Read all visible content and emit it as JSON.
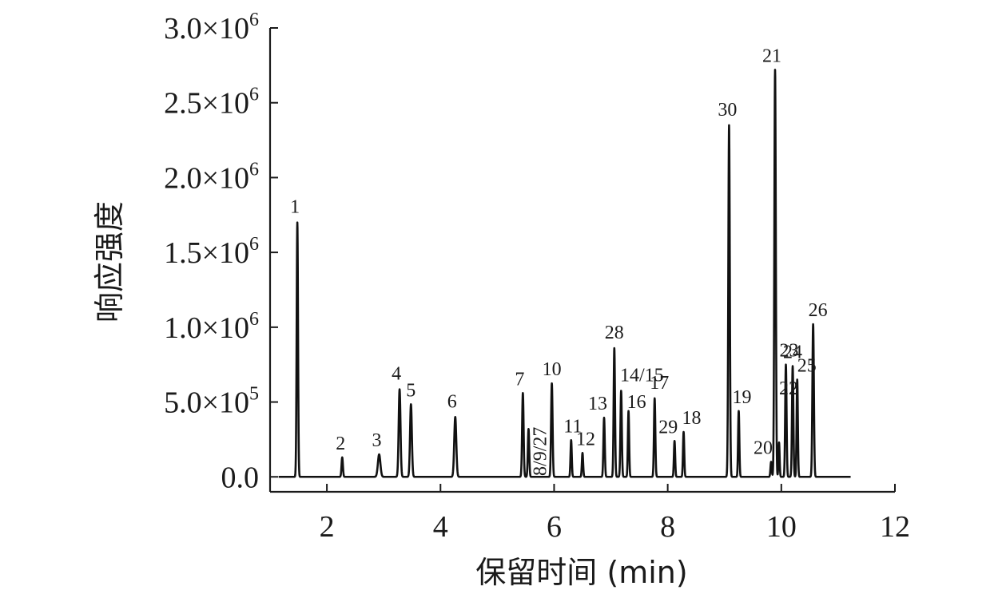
{
  "chart_data": {
    "type": "line",
    "title": "",
    "xlabel": "保留时间 (min)",
    "ylabel": "响应强度",
    "xlim": [
      1.0,
      12.0
    ],
    "ylim": [
      -100000,
      3000000
    ],
    "x_ticks": [
      {
        "value": 2,
        "label": "2"
      },
      {
        "value": 4,
        "label": "4"
      },
      {
        "value": 6,
        "label": "6"
      },
      {
        "value": 8,
        "label": "8"
      },
      {
        "value": 10,
        "label": "10"
      },
      {
        "value": 12,
        "label": "12"
      }
    ],
    "y_ticks": [
      {
        "value": 0,
        "mantissa": "0.0",
        "exp": ""
      },
      {
        "value": 500000,
        "mantissa": "5.0×10",
        "exp": "5"
      },
      {
        "value": 1000000,
        "mantissa": "1.0×10",
        "exp": "6"
      },
      {
        "value": 1500000,
        "mantissa": "1.5×10",
        "exp": "6"
      },
      {
        "value": 2000000,
        "mantissa": "2.0×10",
        "exp": "6"
      },
      {
        "value": 2500000,
        "mantissa": "2.5×10",
        "exp": "6"
      },
      {
        "value": 3000000,
        "mantissa": "3.0×10",
        "exp": "6"
      }
    ],
    "grid": false,
    "legend": "none",
    "peaks": [
      {
        "label": "1",
        "rt": 1.48,
        "height": 1700000,
        "width": 0.012
      },
      {
        "label": "2",
        "rt": 2.27,
        "height": 130000,
        "width": 0.012
      },
      {
        "label": "3",
        "rt": 2.92,
        "height": 150000,
        "width": 0.022
      },
      {
        "label": "4",
        "rt": 3.28,
        "height": 585000,
        "width": 0.016
      },
      {
        "label": "5",
        "rt": 3.48,
        "height": 485000,
        "width": 0.016
      },
      {
        "label": "6",
        "rt": 4.26,
        "height": 400000,
        "width": 0.018
      },
      {
        "label": "7",
        "rt": 5.45,
        "height": 560000,
        "width": 0.013
      },
      {
        "label": "8/9/27",
        "rt": 5.55,
        "height": 320000,
        "width": 0.012
      },
      {
        "label": "10",
        "rt": 5.96,
        "height": 625000,
        "width": 0.013
      },
      {
        "label": "11",
        "rt": 6.3,
        "height": 245000,
        "width": 0.011
      },
      {
        "label": "12",
        "rt": 6.5,
        "height": 160000,
        "width": 0.011
      },
      {
        "label": "13",
        "rt": 6.88,
        "height": 395000,
        "width": 0.012
      },
      {
        "label": "28",
        "rt": 7.06,
        "height": 860000,
        "width": 0.012
      },
      {
        "label": "14/15",
        "rt": 7.18,
        "height": 575000,
        "width": 0.012
      },
      {
        "label": "16",
        "rt": 7.31,
        "height": 440000,
        "width": 0.011
      },
      {
        "label": "17",
        "rt": 7.77,
        "height": 525000,
        "width": 0.012
      },
      {
        "label": "29",
        "rt": 8.12,
        "height": 240000,
        "width": 0.011
      },
      {
        "label": "18",
        "rt": 8.28,
        "height": 300000,
        "width": 0.011
      },
      {
        "label": "30",
        "rt": 9.08,
        "height": 2350000,
        "width": 0.013
      },
      {
        "label": "19",
        "rt": 9.25,
        "height": 440000,
        "width": 0.011
      },
      {
        "label": "20",
        "rt": 9.82,
        "height": 100000,
        "width": 0.011
      },
      {
        "label": "21",
        "rt": 9.89,
        "height": 2720000,
        "width": 0.013
      },
      {
        "label": "22",
        "rt": 9.96,
        "height": 230000,
        "width": 0.01
      },
      {
        "label": "23",
        "rt": 10.08,
        "height": 750000,
        "width": 0.012
      },
      {
        "label": "24",
        "rt": 10.2,
        "height": 740000,
        "width": 0.012
      },
      {
        "label": "25",
        "rt": 10.28,
        "height": 650000,
        "width": 0.011
      },
      {
        "label": "26",
        "rt": 10.56,
        "height": 1020000,
        "width": 0.013
      }
    ]
  }
}
